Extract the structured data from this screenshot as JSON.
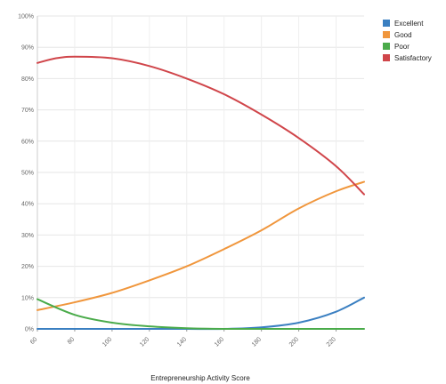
{
  "chart_data": {
    "type": "line",
    "title": "",
    "xlabel": "Entrepreneurship Activity Score",
    "ylabel": "",
    "xlim": [
      60,
      235
    ],
    "ylim": [
      0,
      100
    ],
    "xticks": [
      60,
      80,
      100,
      120,
      140,
      160,
      180,
      200,
      220
    ],
    "yticks": [
      0,
      10,
      20,
      30,
      40,
      50,
      60,
      70,
      80,
      90,
      100
    ],
    "ytick_suffix": "%",
    "grid": true,
    "legend_position": "top-right",
    "series": [
      {
        "name": "Excellent",
        "color": "#3a7fc1",
        "x": [
          60,
          80,
          100,
          120,
          140,
          160,
          180,
          200,
          220,
          235
        ],
        "y": [
          0,
          0,
          0,
          0,
          0,
          0,
          0.5,
          2,
          5.5,
          10
        ]
      },
      {
        "name": "Good",
        "color": "#f0963c",
        "x": [
          60,
          80,
          100,
          120,
          140,
          160,
          180,
          200,
          220,
          235
        ],
        "y": [
          6,
          8.5,
          11.5,
          15.5,
          20,
          25.5,
          31.5,
          38.5,
          44,
          47
        ]
      },
      {
        "name": "Poor",
        "color": "#4aab4a",
        "x": [
          60,
          80,
          100,
          120,
          140,
          160,
          180,
          200,
          220,
          235
        ],
        "y": [
          9.5,
          4.5,
          2,
          0.8,
          0.2,
          0,
          0,
          0,
          0,
          0
        ]
      },
      {
        "name": "Satisfactory",
        "color": "#d0454a",
        "x": [
          60,
          70,
          80,
          100,
          120,
          140,
          160,
          180,
          200,
          220,
          235
        ],
        "y": [
          85,
          86.5,
          87,
          86.5,
          84,
          80,
          75,
          68.5,
          61,
          52,
          43
        ]
      }
    ]
  }
}
